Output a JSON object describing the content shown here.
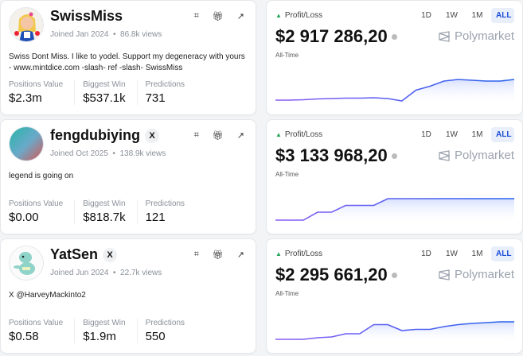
{
  "colors": {
    "accent": "#1d4ed8",
    "line_start": "#8b5cf6",
    "line_end": "#2563eb",
    "profit": "#22a55a"
  },
  "icons": [
    "qr-code-icon",
    "gift-icon",
    "external-link-icon",
    "x-logo-icon",
    "info-icon",
    "polymarket-logo-icon"
  ],
  "stat_labels": {
    "positions": "Positions Value",
    "biggest": "Biggest Win",
    "predictions": "Predictions"
  },
  "pnl": {
    "label": "Profit/Loss",
    "period": "All-Time",
    "tabs": [
      "1D",
      "1W",
      "1M",
      "ALL"
    ],
    "active_tab": "ALL",
    "brand": "Polymarket"
  },
  "traders": [
    {
      "name": "SwissMiss",
      "x_badge": "",
      "joined": "Joined Jan 2024",
      "views": "86.8k views",
      "bio": "Swiss Dont Miss. I like to yodel. Support my degeneracy with yours - www.mintdice.com -slash- ref -slash- SwissMiss",
      "positions_value": "$2.3m",
      "biggest_win": "$537.1k",
      "predictions": "731",
      "profit_loss": "$2 917 286,20",
      "series": [
        10,
        10,
        11,
        13,
        14,
        15,
        15,
        16,
        14,
        8,
        35,
        45,
        58,
        62,
        60,
        58,
        58,
        62
      ]
    },
    {
      "name": "fengdubiying",
      "x_badge": "X",
      "joined": "Joined Oct 2025",
      "views": "138.9k views",
      "bio": "legend is going on",
      "positions_value": "$0.00",
      "biggest_win": "$818.7k",
      "predictions": "121",
      "profit_loss": "$3 133 968,20",
      "series": [
        8,
        8,
        8,
        28,
        28,
        45,
        45,
        45,
        62,
        62,
        62,
        62,
        62,
        62,
        62,
        62,
        62,
        62
      ]
    },
    {
      "name": "YatSen",
      "x_badge": "X",
      "joined": "Joined Jun 2024",
      "views": "22.7k views",
      "bio": "X @HarveyMackinto2",
      "positions_value": "$0.58",
      "biggest_win": "$1.9m",
      "predictions": "550",
      "profit_loss": "$2 295 661,20",
      "series": [
        8,
        8,
        8,
        12,
        14,
        22,
        22,
        45,
        45,
        30,
        33,
        33,
        40,
        45,
        48,
        50,
        52,
        52
      ]
    }
  ]
}
